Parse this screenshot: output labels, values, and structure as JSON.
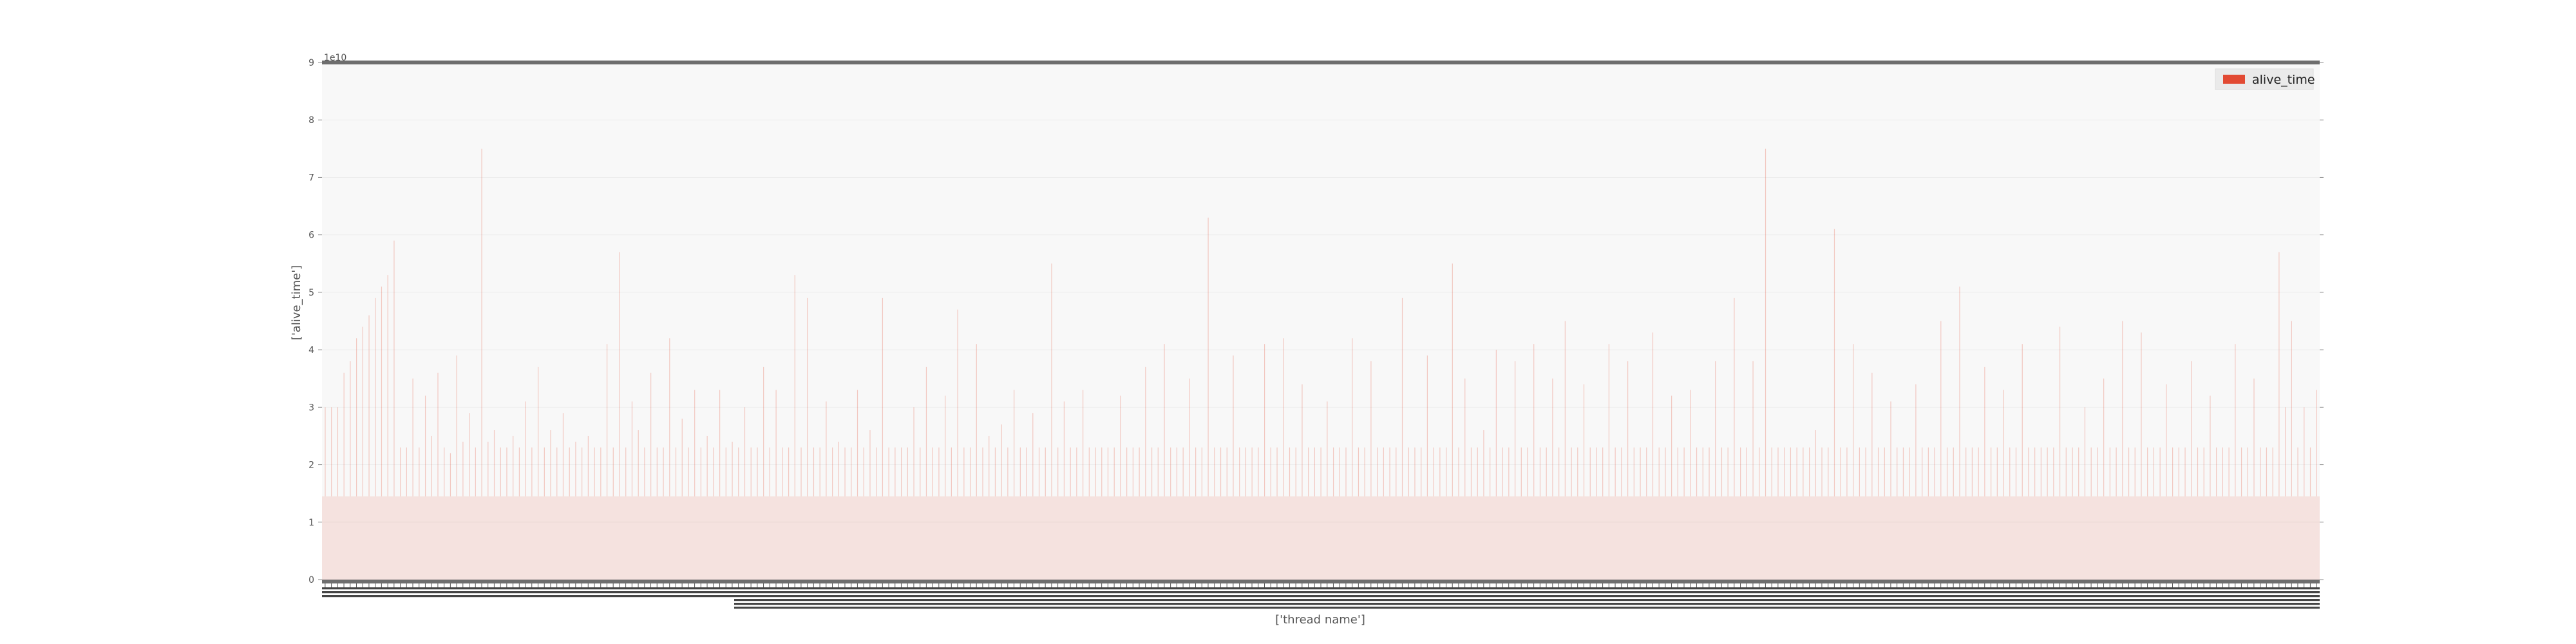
{
  "chart_data": {
    "type": "bar",
    "title": "",
    "xlabel": "['thread name']",
    "ylabel": "['alive_time']",
    "y_offset_text": "1e10",
    "y_scale_multiplier": 10000000000,
    "ylim": [
      0,
      9
    ],
    "y_ticks": [
      0,
      1,
      2,
      3,
      4,
      5,
      6,
      7,
      8,
      9
    ],
    "grid": true,
    "legend_position": "top-right",
    "series": [
      {
        "name": "alive_time",
        "color": "#E24A33",
        "values": [
          3.0,
          3.0,
          3.0,
          3.6,
          3.8,
          4.2,
          4.4,
          4.6,
          4.9,
          5.1,
          5.3,
          5.9,
          2.3,
          2.3,
          3.5,
          2.3,
          3.2,
          2.5,
          3.6,
          2.3,
          2.2,
          3.9,
          2.4,
          2.9,
          2.3,
          7.5,
          2.4,
          2.6,
          2.3,
          2.3,
          2.5,
          2.3,
          3.1,
          2.3,
          3.7,
          2.3,
          2.6,
          2.3,
          2.9,
          2.3,
          2.4,
          2.3,
          2.5,
          2.3,
          2.3,
          4.1,
          2.3,
          5.7,
          2.3,
          3.1,
          2.6,
          2.3,
          3.6,
          2.3,
          2.3,
          4.2,
          2.3,
          2.8,
          2.3,
          3.3,
          2.3,
          2.5,
          2.3,
          3.3,
          2.3,
          2.4,
          2.3,
          3.0,
          2.3,
          2.3,
          3.7,
          2.3,
          3.3,
          2.3,
          2.3,
          5.3,
          2.3,
          4.9,
          2.3,
          2.3,
          3.1,
          2.3,
          2.4,
          2.3,
          2.3,
          3.3,
          2.3,
          2.6,
          2.3,
          4.9,
          2.3,
          2.3,
          2.3,
          2.3,
          3.0,
          2.3,
          3.7,
          2.3,
          2.3,
          3.2,
          2.3,
          4.7,
          2.3,
          2.3,
          4.1,
          2.3,
          2.5,
          2.3,
          2.7,
          2.3,
          3.3,
          2.3,
          2.3,
          2.9,
          2.3,
          2.3,
          5.5,
          2.3,
          3.1,
          2.3,
          2.3,
          3.3,
          2.3,
          2.3,
          2.3,
          2.3,
          2.3,
          3.2,
          2.3,
          2.3,
          2.3,
          3.7,
          2.3,
          2.3,
          4.1,
          2.3,
          2.3,
          2.3,
          3.5,
          2.3,
          2.3,
          6.3,
          2.3,
          2.3,
          2.3,
          3.9,
          2.3,
          2.3,
          2.3,
          2.3,
          4.1,
          2.3,
          2.3,
          4.2,
          2.3,
          2.3,
          3.4,
          2.3,
          2.3,
          2.3,
          3.1,
          2.3,
          2.3,
          2.3,
          4.2,
          2.3,
          2.3,
          3.8,
          2.3,
          2.3,
          2.3,
          2.3,
          4.9,
          2.3,
          2.3,
          2.3,
          3.9,
          2.3,
          2.3,
          2.3,
          5.5,
          2.3,
          3.5,
          2.3,
          2.3,
          2.6,
          2.3,
          4.0,
          2.3,
          2.3,
          3.8,
          2.3,
          2.3,
          4.1,
          2.3,
          2.3,
          3.5,
          2.3,
          4.5,
          2.3,
          2.3,
          3.4,
          2.3,
          2.3,
          2.3,
          4.1,
          2.3,
          2.3,
          3.8,
          2.3,
          2.3,
          2.3,
          4.3,
          2.3,
          2.3,
          3.2,
          2.3,
          2.3,
          3.3,
          2.3,
          2.3,
          2.3,
          3.8,
          2.3,
          2.3,
          4.9,
          2.3,
          2.3,
          3.8,
          2.3,
          7.5,
          2.3,
          2.3,
          2.3,
          2.3,
          2.3,
          2.3,
          2.3,
          2.6,
          2.3,
          2.3,
          6.1,
          2.3,
          2.3,
          4.1,
          2.3,
          2.3,
          3.6,
          2.3,
          2.3,
          3.1,
          2.3,
          2.3,
          2.3,
          3.4,
          2.3,
          2.3,
          2.3,
          4.5,
          2.3,
          2.3,
          5.1,
          2.3,
          2.3,
          2.3,
          3.7,
          2.3,
          2.3,
          3.3,
          2.3,
          2.3,
          4.1,
          2.3,
          2.3,
          2.3,
          2.3,
          2.3,
          4.4,
          2.3,
          2.3,
          2.3,
          3.0,
          2.3,
          2.3,
          3.5,
          2.3,
          2.3,
          4.5,
          2.3,
          2.3,
          4.3,
          2.3,
          2.3,
          2.3,
          3.4,
          2.3,
          2.3,
          2.3,
          3.8,
          2.3,
          2.3,
          3.2,
          2.3,
          2.3,
          2.3,
          4.1,
          2.3,
          2.3,
          3.5,
          2.3,
          2.3,
          2.3,
          5.7,
          3.0,
          4.5,
          2.3,
          3.0,
          2.3,
          3.3
        ]
      }
    ],
    "baseline_value": 1.45,
    "categories_note": "thread name tick labels are overlapping and illegible in the original"
  }
}
